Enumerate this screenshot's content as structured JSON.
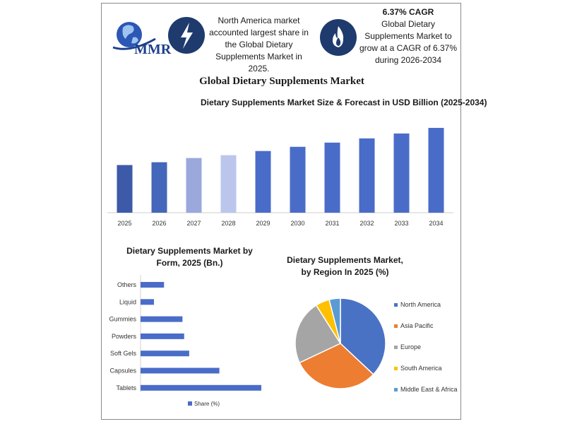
{
  "header": {
    "logo_text": "MMR",
    "fact1": "North America market accounted largest share in the Global Dietary Supplements Market in 2025.",
    "fact2_title": "6.37% CAGR",
    "fact2": "Global Dietary Supplements Market to grow at a CAGR of 6.37% during 2026-2034",
    "icons": [
      "lightning-icon",
      "flame-icon"
    ]
  },
  "main_title": "Global Dietary Supplements Market",
  "chart_data": [
    {
      "type": "bar",
      "title": "Dietary Supplements Market Size & Forecast in USD Billion (2025-2034)",
      "categories": [
        "2025",
        "2026",
        "2027",
        "2028",
        "2029",
        "2030",
        "2031",
        "2032",
        "2033",
        "2034"
      ],
      "values": [
        68,
        72,
        78,
        82,
        88,
        94,
        100,
        106,
        113,
        121
      ],
      "colors": [
        "#3d5aa8",
        "#4466bb",
        "#9aa8dc",
        "#bcc6ec",
        "#4a6cc9",
        "#4a6cc9",
        "#4a6cc9",
        "#4a6cc9",
        "#4a6cc9",
        "#4a6cc9"
      ],
      "ylim": [
        0,
        125
      ],
      "grid": false
    },
    {
      "type": "bar",
      "orientation": "horizontal",
      "title": "Dietary Supplements Market by Form, 2025 (Bn.)",
      "categories": [
        "Others",
        "Liquid",
        "Gummies",
        "Powders",
        "Soft Gels",
        "Capsules",
        "Tablets"
      ],
      "values": [
        7,
        4,
        12.5,
        13,
        14.5,
        23.5,
        36
      ],
      "color": "#4a6cc9",
      "xlim": [
        0,
        40
      ],
      "legend": "Share (%)",
      "legend_position": "bottom"
    },
    {
      "type": "pie",
      "title": "Dietary Supplements Market, by Region In 2025 (%)",
      "labels": [
        "North America",
        "Asia Pacific",
        "Europe",
        "South America",
        "Middle East & Africa"
      ],
      "values": [
        37,
        31,
        23,
        5,
        4
      ],
      "colors": [
        "#4a72c4",
        "#ed7d31",
        "#a5a5a5",
        "#ffc000",
        "#5b9bd5"
      ],
      "legend_position": "right"
    }
  ]
}
